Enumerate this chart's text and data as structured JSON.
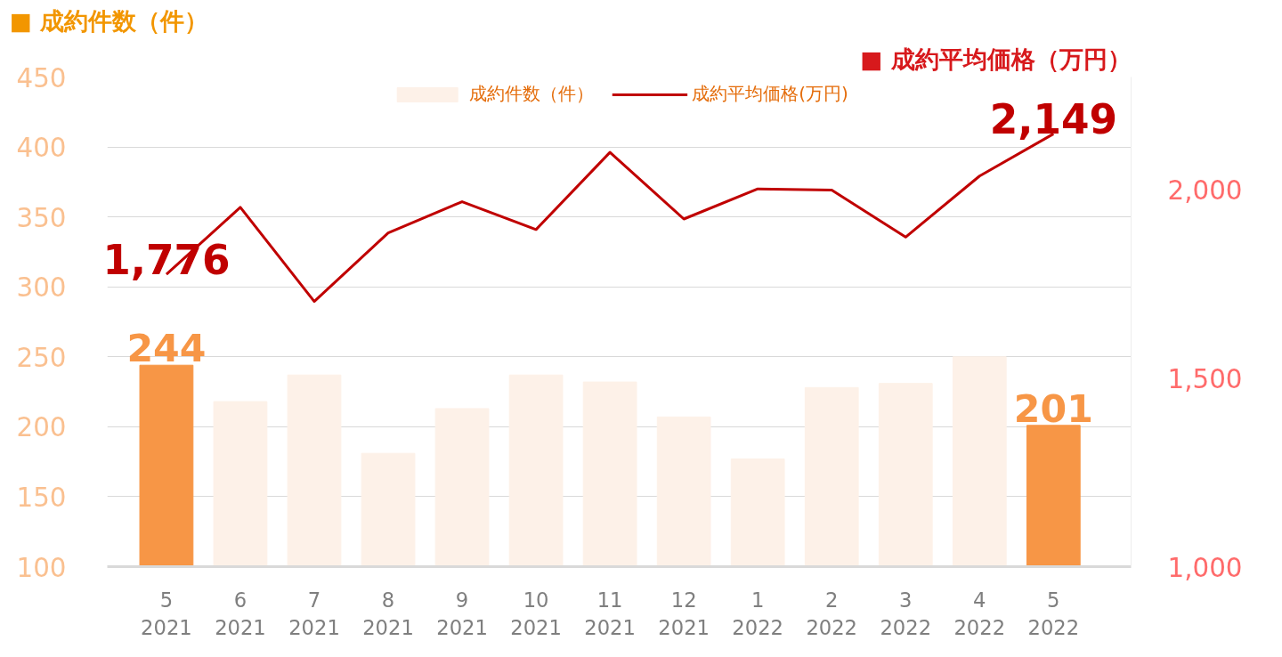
{
  "chart_data": {
    "type": "bar",
    "ylabel": "■ 成約件数（件）",
    "y2label": "■ 成約平均価格（万円）",
    "categories": [
      "5\n2021",
      "6\n2021",
      "7\n2021",
      "8\n2021",
      "9\n2021",
      "10\n2021",
      "11\n2021",
      "12\n2021",
      "1\n2022",
      "2\n2022",
      "3\n2022",
      "4\n2022",
      "5\n2022"
    ],
    "series": [
      {
        "name": "成約件数（件）",
        "color": "#fdf1e8",
        "colors": [
          "#f79646",
          "#fdf1e8",
          "#fdf1e8",
          "#fdf1e8",
          "#fdf1e8",
          "#fdf1e8",
          "#fdf1e8",
          "#fdf1e8",
          "#fdf1e8",
          "#fdf1e8",
          "#fdf1e8",
          "#fdf1e8",
          "#f79646"
        ],
        "values": [
          244,
          218,
          237,
          181,
          213,
          237,
          232,
          207,
          177,
          228,
          231,
          250,
          201
        ],
        "value_labels": [
          "244",
          null,
          null,
          null,
          null,
          null,
          null,
          null,
          null,
          null,
          null,
          null,
          "201"
        ]
      },
      {
        "name": "成約平均価格(万円)",
        "type": "line",
        "axis": "y2",
        "color": "#c00000",
        "values": [
          1776,
          1954,
          1704,
          1886,
          1969,
          1895,
          2100,
          1923,
          2003,
          2000,
          1875,
          2037,
          2149
        ],
        "value_labels": [
          "1,776",
          null,
          null,
          null,
          null,
          null,
          null,
          null,
          null,
          null,
          null,
          null,
          "2,149"
        ]
      }
    ],
    "ylim": [
      100,
      450
    ],
    "yticks": [
      100,
      150,
      200,
      250,
      300,
      350,
      400,
      450
    ],
    "y2lim": [
      1000,
      2300
    ],
    "y2ticks": [
      {
        "value": 1000,
        "label": "1,000"
      },
      {
        "value": 1500,
        "label": "1,500"
      },
      {
        "value": 2000,
        "label": "2,000"
      }
    ],
    "grid": "y",
    "legend": "top",
    "marker": "none",
    "line_style": "solid"
  }
}
